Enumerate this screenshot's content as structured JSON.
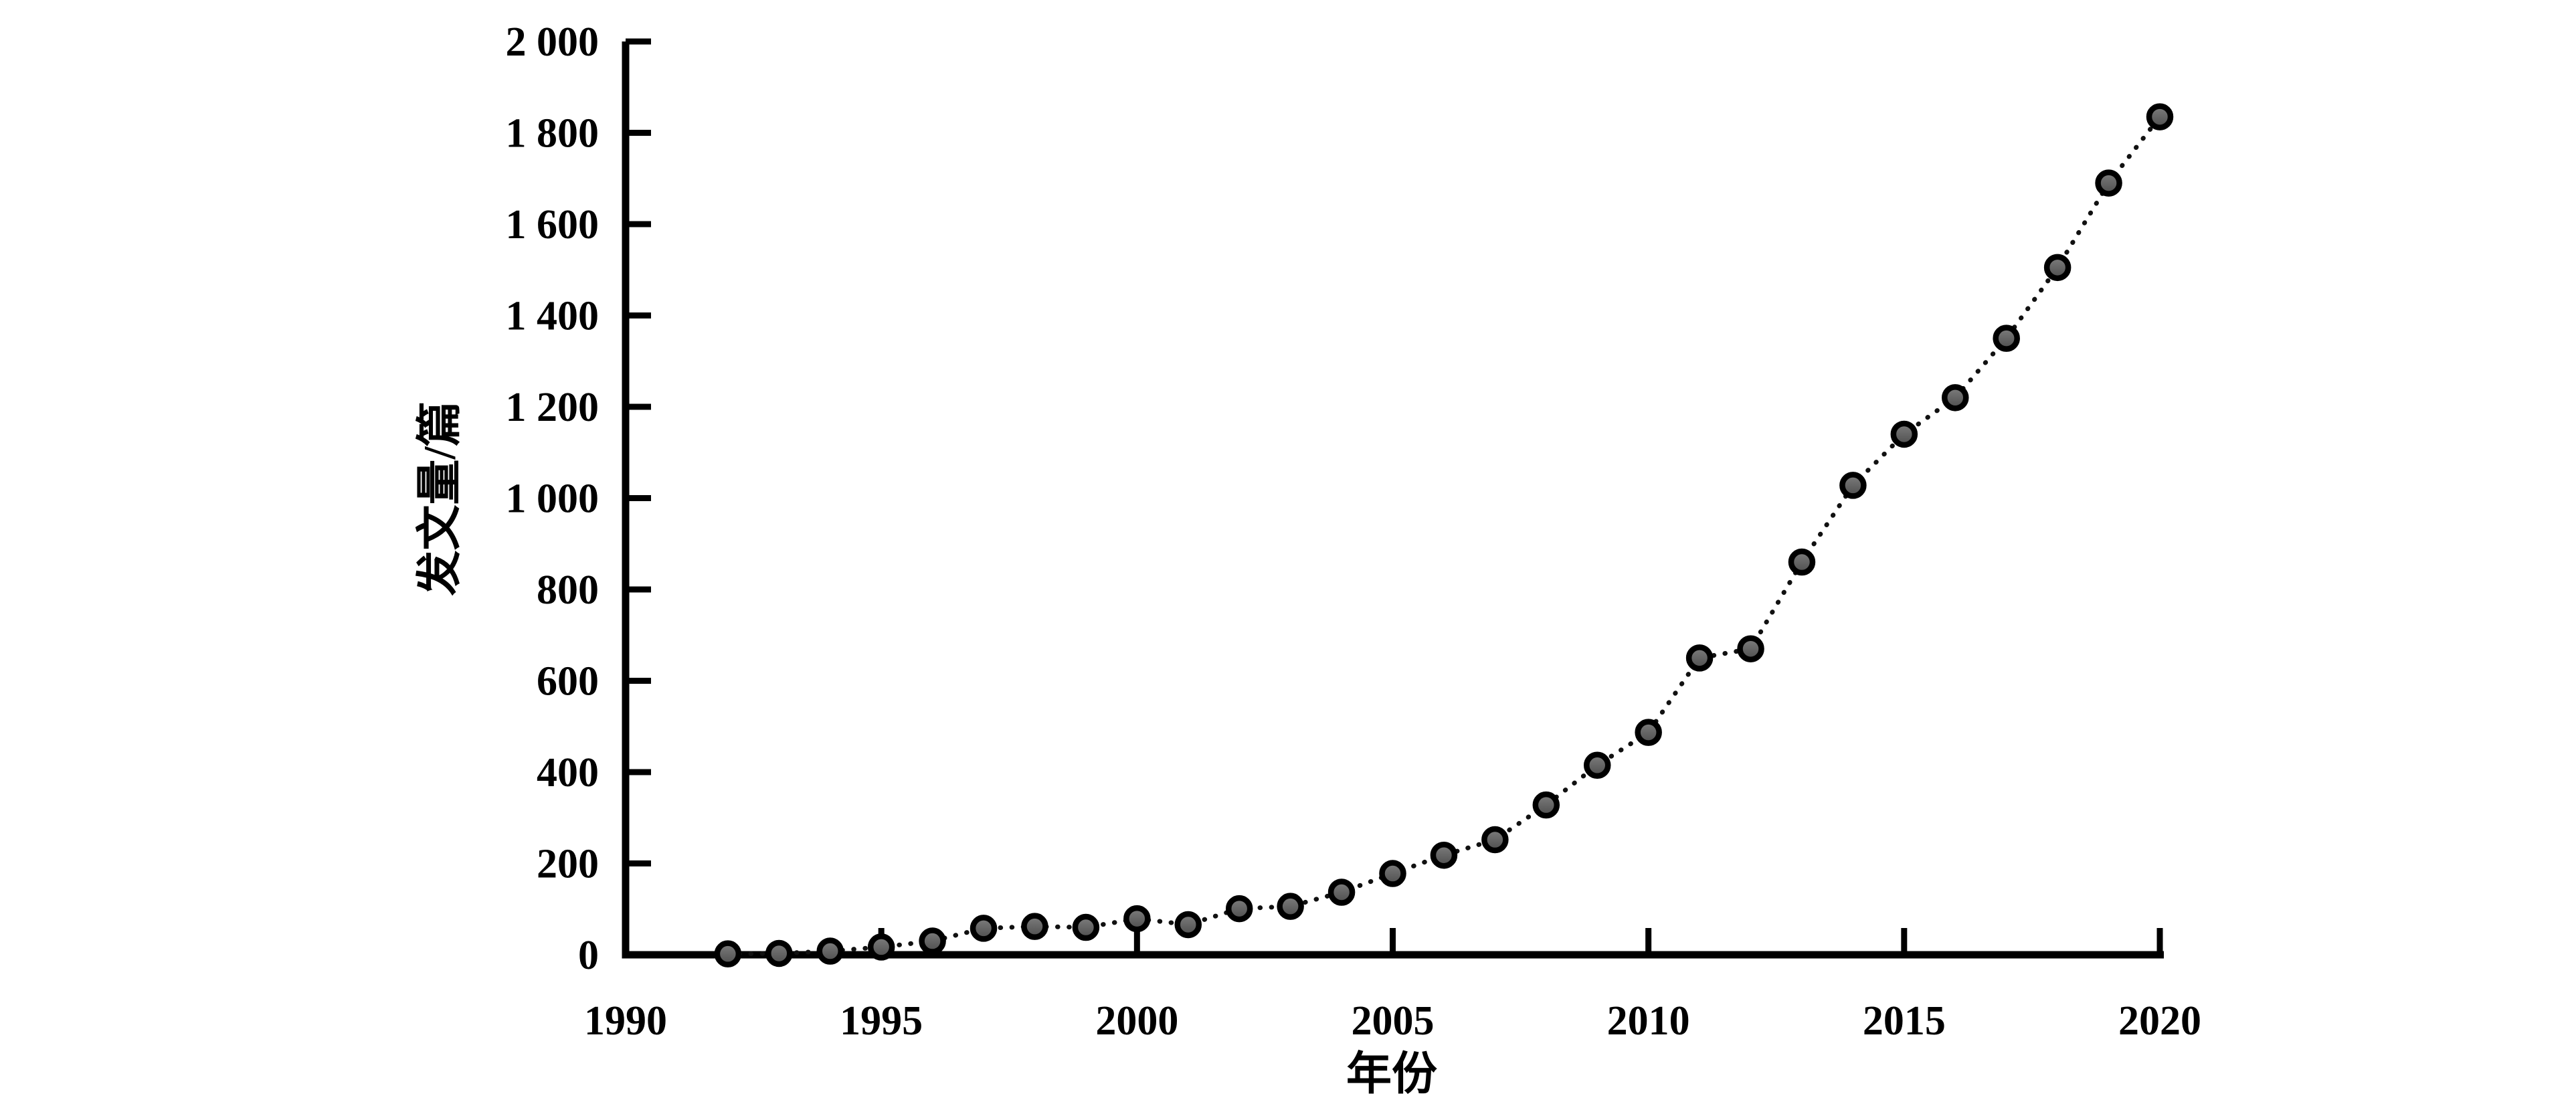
{
  "figure": {
    "background": "#ffffff",
    "text_color": "#000000"
  },
  "chart_data": {
    "type": "line",
    "title": "",
    "xlabel": "年份",
    "ylabel": "发文量/篇",
    "x": [
      1992,
      1993,
      1994,
      1995,
      1996,
      1997,
      1998,
      1999,
      2000,
      2001,
      2002,
      2003,
      2004,
      2005,
      2006,
      2007,
      2008,
      2009,
      2010,
      2011,
      2012,
      2013,
      2014,
      2015,
      2016,
      2017,
      2018,
      2019,
      2020
    ],
    "values": [
      2,
      3,
      8,
      17,
      30,
      58,
      62,
      60,
      79,
      66,
      101,
      106,
      137,
      178,
      218,
      252,
      328,
      415,
      487,
      650,
      670,
      860,
      1028,
      1140,
      1220,
      1350,
      1505,
      1690,
      1835
    ],
    "xlim": [
      1990,
      2020
    ],
    "ylim": [
      0,
      2000
    ],
    "xticks": [
      {
        "v": 1990,
        "label": "1990"
      },
      {
        "v": 1995,
        "label": "1995"
      },
      {
        "v": 2000,
        "label": "2000"
      },
      {
        "v": 2005,
        "label": "2005"
      },
      {
        "v": 2010,
        "label": "2010"
      },
      {
        "v": 2015,
        "label": "2015"
      },
      {
        "v": 2020,
        "label": "2020"
      }
    ],
    "yticks": [
      {
        "v": 0,
        "label": "0"
      },
      {
        "v": 200,
        "label": "200"
      },
      {
        "v": 400,
        "label": "400"
      },
      {
        "v": 600,
        "label": "600"
      },
      {
        "v": 800,
        "label": "800"
      },
      {
        "v": 1000,
        "label": "1 000"
      },
      {
        "v": 1200,
        "label": "1 200"
      },
      {
        "v": 1400,
        "label": "1 400"
      },
      {
        "v": 1600,
        "label": "1 600"
      },
      {
        "v": 1800,
        "label": "1 800"
      },
      {
        "v": 2000,
        "label": "2 000"
      }
    ],
    "grid": false,
    "legend": "none",
    "line_style": "dotted",
    "line_color": "#111111",
    "axis_color": "#000000",
    "marker_fill_top": "#7e7e7e",
    "marker_fill_bottom": "#4e4e4e",
    "marker_stroke": "#000000"
  }
}
